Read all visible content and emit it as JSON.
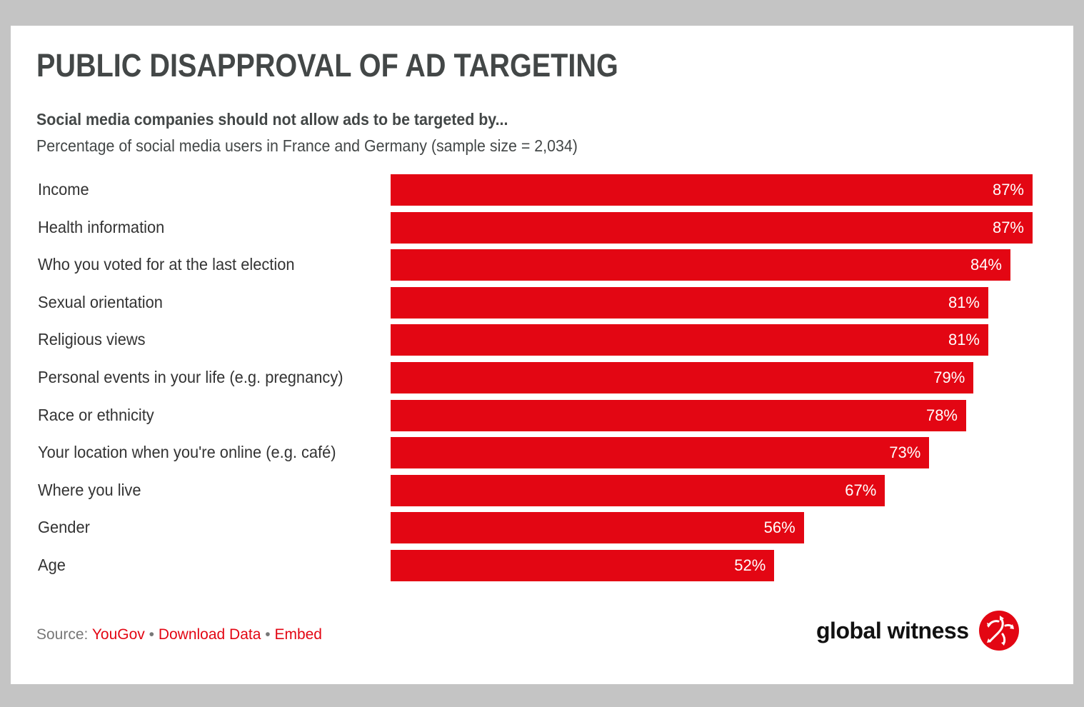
{
  "chart_data": {
    "type": "bar",
    "orientation": "horizontal",
    "title": "PUBLIC DISAPPROVAL OF AD TARGETING",
    "subtitle": "Social media companies should not allow ads to be targeted by...",
    "description": "Percentage of social media users in France and Germany (sample size = 2,034)",
    "categories": [
      "Income",
      "Health information",
      "Who you voted for at the last election",
      "Sexual orientation",
      "Religious views",
      "Personal events in your life (e.g. pregnancy)",
      "Race or ethnicity",
      "Your location when you're online (e.g. café)",
      "Where you live",
      "Gender",
      "Age"
    ],
    "values": [
      87,
      87,
      84,
      81,
      81,
      79,
      78,
      73,
      67,
      56,
      52
    ],
    "value_suffix": "%",
    "bar_color": "#e30613",
    "grid": false
  },
  "footer": {
    "source_label": "Source: ",
    "source_link": "YouGov",
    "sep": " • ",
    "download": "Download Data",
    "embed": "Embed"
  },
  "logo": {
    "text": "global witness",
    "color": "#e30613"
  }
}
